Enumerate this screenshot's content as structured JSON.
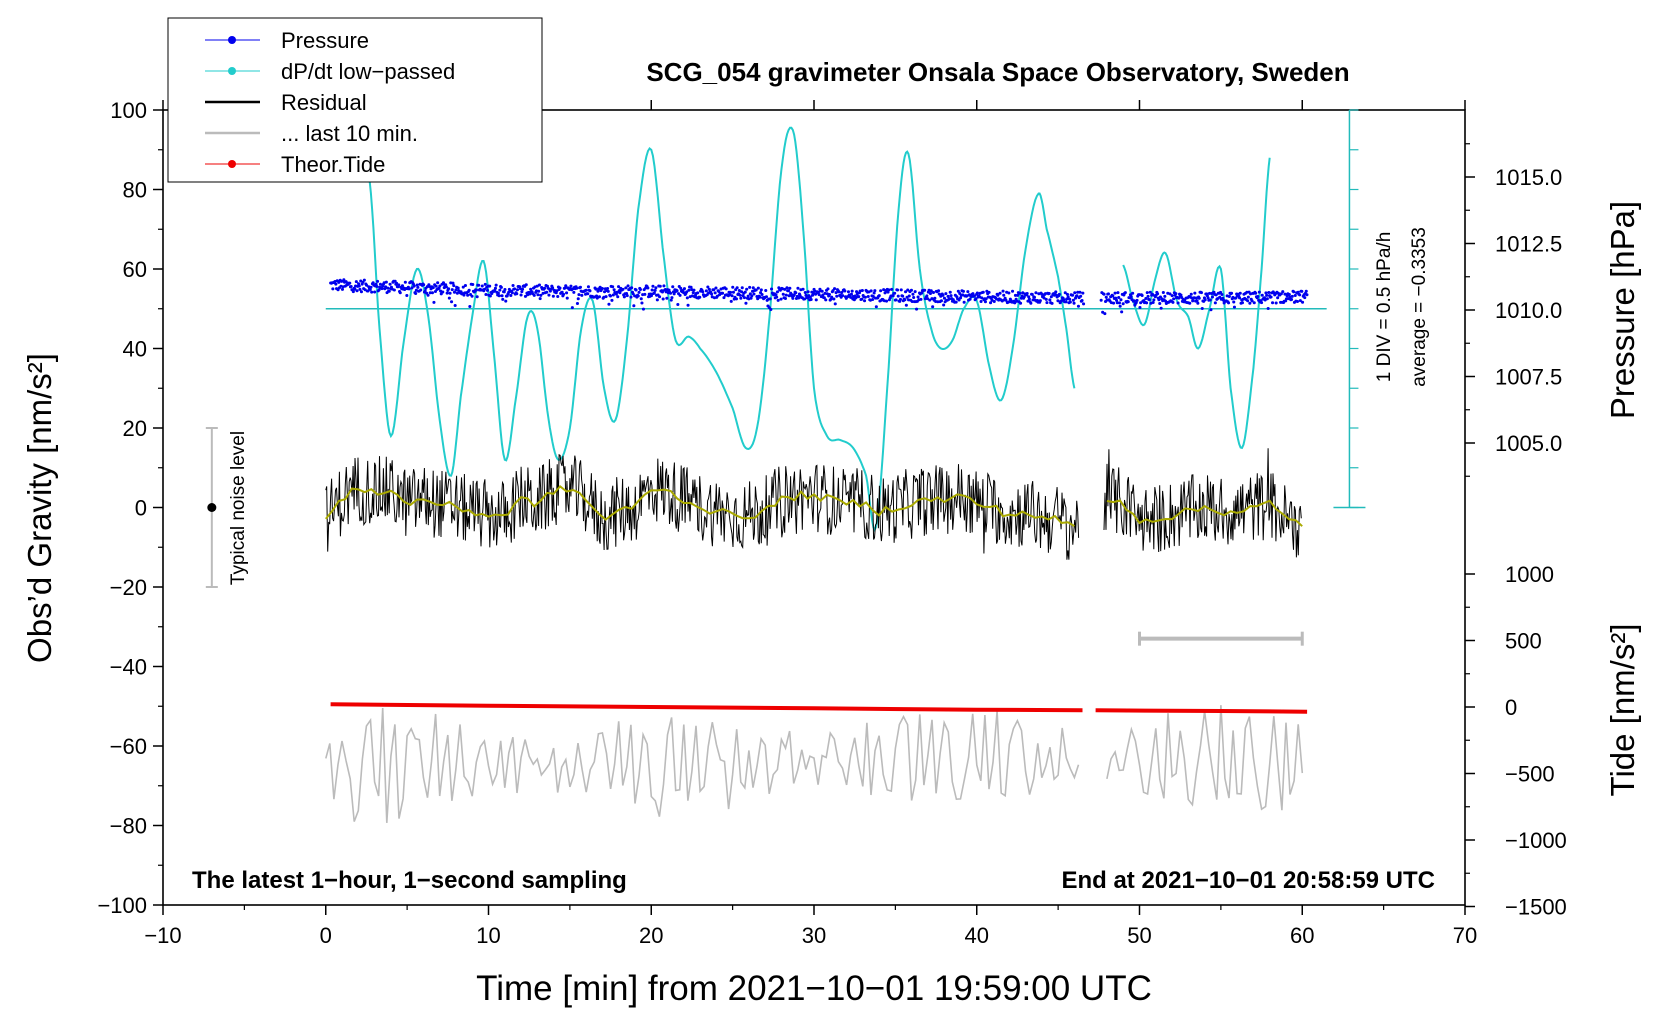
{
  "chart_data": {
    "type": "line",
    "title": "SCG_054 gravimeter Onsala Space Observatory, Sweden",
    "xlabel": "Time [min] from 2021−10−01 19:59:00 UTC",
    "ylabel_left": "Obs’d Gravity [nm/s²]",
    "ylabel_right_pressure": "Pressure [hPa]",
    "ylabel_right_tide": "Tide [nm/s²]",
    "xlim": [
      -10,
      70
    ],
    "ylim": [
      -100,
      100
    ],
    "pressure_ylim": [
      1002.5,
      1017.5
    ],
    "tide_ylim": [
      -1500,
      1000
    ],
    "x_ticks": [
      "−10",
      "0",
      "10",
      "20",
      "30",
      "40",
      "50",
      "60",
      "70"
    ],
    "y_ticks": [
      "100",
      "80",
      "60",
      "40",
      "20",
      "0",
      "−20",
      "−40",
      "−60",
      "−80",
      "−100"
    ],
    "pressure_ticks": [
      "1015.0",
      "1012.5",
      "1010.0",
      "1007.5",
      "1005.0"
    ],
    "tide_ticks": [
      "1000",
      "500",
      "0",
      "−500",
      "−1000",
      "−1500"
    ],
    "legend": {
      "position": "top-left",
      "entries": [
        {
          "label": "Pressure",
          "color": "#0000ee",
          "marker": "dot"
        },
        {
          "label": "dP/dt low−passed",
          "color": "#22cccc",
          "marker": "dot"
        },
        {
          "label": "Residual",
          "color": "#000000",
          "marker": "line"
        },
        {
          "label": "... last 10 min.",
          "color": "#bbbbbb",
          "marker": "line"
        },
        {
          "label": "Theor.Tide",
          "color": "#ee0000",
          "marker": "dot"
        }
      ]
    },
    "annotations": {
      "bottom_left": "The latest 1−hour, 1−second sampling",
      "bottom_right": "End at 2021−10−01 20:58:59 UTC",
      "noise_label": "Typical noise level",
      "div_label": "1 DIV = 0.5 hPa/h",
      "average_label": "average = −0.3353"
    },
    "noise_bar": {
      "x": -7,
      "center": 0,
      "half_range": 20
    },
    "last10_bar": {
      "x_start": 50,
      "x_end": 60,
      "y": -33
    },
    "pressure_series": {
      "name": "Pressure",
      "x": [
        0,
        5,
        10,
        15,
        20,
        25,
        30,
        35,
        40,
        46,
        48,
        52,
        56,
        60
      ],
      "values": [
        1010.95,
        1010.85,
        1010.75,
        1010.7,
        1010.7,
        1010.65,
        1010.6,
        1010.55,
        1010.5,
        1010.45,
        1010.45,
        1010.45,
        1010.45,
        1010.5
      ],
      "gap": [
        46.6,
        47.6
      ]
    },
    "dpdt_series": {
      "name": "dP/dt low−passed",
      "average_line_y": 50,
      "x": [
        2.7,
        3.3,
        4.0,
        4.8,
        5.6,
        6.3,
        7.0,
        7.7,
        8.3,
        9.0,
        9.7,
        10.3,
        11.0,
        11.7,
        12.4,
        13.0,
        13.7,
        14.3,
        15.0,
        15.7,
        16.4,
        17.1,
        17.8,
        18.5,
        19.2,
        20.0,
        20.8,
        21.5,
        22.3,
        23.0,
        24.0,
        25.0,
        25.8,
        26.5,
        27.2,
        28.0,
        28.7,
        29.3,
        30.0,
        30.8,
        31.6,
        32.4,
        33.2,
        33.8,
        34.5,
        35.2,
        35.8,
        36.5,
        37.2,
        37.8,
        38.5,
        39.2,
        40.0,
        40.8,
        41.5,
        42.2,
        43.0,
        43.8,
        44.3,
        45.0,
        45.5,
        46.0
      ],
      "values": [
        82,
        45,
        18,
        42,
        60,
        48,
        22,
        8,
        28,
        48,
        62,
        40,
        12,
        28,
        48,
        45,
        22,
        12,
        20,
        45,
        52,
        30,
        22,
        42,
        75,
        90,
        62,
        42,
        43,
        40,
        34,
        25,
        15,
        20,
        45,
        85,
        95,
        72,
        30,
        18,
        17,
        15,
        8,
        -5,
        30,
        75,
        89,
        60,
        45,
        40,
        42,
        50,
        52,
        35,
        27,
        40,
        65,
        79,
        70,
        58,
        45,
        30
      ],
      "x2": [
        49.0,
        49.6,
        50.3,
        51.0,
        51.6,
        52.3,
        53.0,
        53.6,
        54.3,
        55.0,
        55.6,
        56.3,
        57.0,
        57.5,
        58.0
      ],
      "values2": [
        61,
        52,
        46,
        58,
        64,
        52,
        48,
        40,
        50,
        60,
        30,
        15,
        35,
        60,
        88
      ]
    },
    "residual_series": {
      "name": "Residual",
      "x": [
        0,
        1,
        2,
        3,
        4,
        5,
        6,
        7,
        8,
        9,
        10,
        11,
        12,
        13,
        14,
        15,
        16,
        17,
        18,
        19,
        20,
        21,
        22,
        23,
        24,
        25,
        26,
        27,
        28,
        29,
        30,
        31,
        32,
        33,
        34,
        35,
        36,
        37,
        38,
        39,
        40,
        41,
        42,
        43,
        44,
        45,
        46,
        48,
        49,
        50,
        51,
        52,
        53,
        54,
        55,
        56,
        57,
        58,
        59,
        60
      ],
      "values": [
        -3,
        2,
        5,
        4,
        4,
        1,
        2,
        1,
        0,
        -1,
        -2,
        -2,
        2,
        1,
        4,
        5,
        2,
        -3,
        -1,
        0,
        5,
        4,
        2,
        0,
        -1,
        -2,
        -2,
        -1,
        2,
        3,
        3,
        2,
        1,
        1,
        -1,
        0,
        1,
        2,
        2,
        3,
        1,
        0,
        -2,
        -1,
        -3,
        -3,
        -5,
        2,
        1,
        -3,
        -3,
        -2,
        -1,
        0,
        -1,
        -1,
        0,
        1,
        -3,
        -4
      ]
    },
    "last10_series": {
      "name": "... last 10 min.",
      "x": [
        0,
        1,
        2,
        3,
        4,
        5,
        6,
        7,
        8,
        9,
        10,
        11,
        12,
        13,
        14,
        15,
        16,
        17,
        18,
        19,
        20,
        21,
        22,
        23,
        24,
        25,
        26,
        27,
        28,
        29,
        30,
        31,
        32,
        33,
        34,
        35,
        36,
        37,
        38,
        39,
        40,
        41,
        42,
        43,
        44,
        45,
        46,
        48,
        49,
        50,
        51,
        52,
        53,
        54,
        55,
        56,
        57,
        58,
        59,
        60
      ],
      "values": [
        -66,
        -64,
        -65,
        -65,
        -66,
        -65,
        -64,
        -65,
        -66,
        -65,
        -65,
        -65,
        -65,
        -64,
        -66,
        -65,
        -66,
        -65,
        -64,
        -65,
        -66,
        -65,
        -64,
        -65,
        -65,
        -64,
        -64,
        -63,
        -63,
        -63,
        -63,
        -62,
        -62,
        -63,
        -63,
        -63,
        -62,
        -62,
        -63,
        -63,
        -64,
        -64,
        -64,
        -65,
        -65,
        -64,
        -64,
        -63,
        -64,
        -64,
        -64,
        -64,
        -63,
        -64,
        -64,
        -65,
        -64,
        -64,
        -65,
        -64
      ]
    },
    "tide_series": {
      "name": "Theor.Tide",
      "x": [
        0.3,
        10,
        20,
        30,
        40,
        46.5,
        47.3,
        55,
        60.3
      ],
      "values": [
        20,
        10,
        0,
        -10,
        -20,
        -25,
        -25,
        -30,
        -35
      ],
      "gap": [
        46.7,
        47.2
      ]
    },
    "residual_smooth_color": "#aaaa00"
  }
}
